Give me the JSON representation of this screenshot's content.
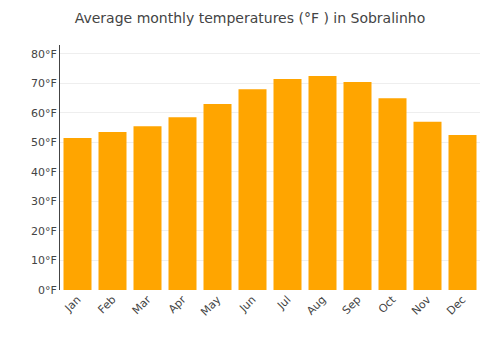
{
  "chart_data": {
    "type": "bar",
    "title": "Average monthly temperatures (°F ) in Sobralinho",
    "categories": [
      "Jan",
      "Feb",
      "Mar",
      "Apr",
      "May",
      "Jun",
      "Jul",
      "Aug",
      "Sep",
      "Oct",
      "Nov",
      "Dec"
    ],
    "values": [
      51.5,
      53.5,
      55.5,
      58.5,
      63.0,
      68.0,
      71.5,
      72.5,
      70.5,
      65.0,
      57.0,
      52.5
    ],
    "color": "#FFA500",
    "ylim": [
      0,
      83
    ],
    "yticks": [
      {
        "value": 0,
        "label": "0°F"
      },
      {
        "value": 10,
        "label": "10°F"
      },
      {
        "value": 20,
        "label": "20°F"
      },
      {
        "value": 30,
        "label": "30°F"
      },
      {
        "value": 40,
        "label": "40°F"
      },
      {
        "value": 50,
        "label": "50°F"
      },
      {
        "value": 60,
        "label": "60°F"
      },
      {
        "value": 70,
        "label": "70°F"
      },
      {
        "value": 80,
        "label": "80°F"
      }
    ],
    "grid": true
  }
}
